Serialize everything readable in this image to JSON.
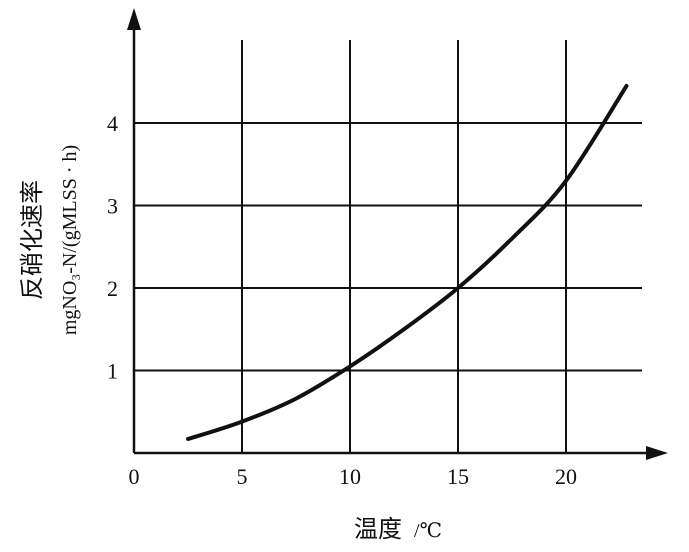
{
  "chart_data": {
    "type": "line",
    "x_axis": {
      "label_text": "温度",
      "label_unit": "/℃",
      "range": [
        0,
        25
      ],
      "ticks": [
        0,
        5,
        10,
        15,
        20
      ],
      "tick_labels": [
        "0",
        "5",
        "10",
        "15",
        "20"
      ]
    },
    "y_axis": {
      "label_line1": "反硝化速率",
      "label_line2": "mgNO₃-N/(gMLSS · h)",
      "range": [
        0,
        5
      ],
      "ticks": [
        1,
        2,
        3,
        4
      ],
      "tick_labels": [
        "1",
        "2",
        "3",
        "4"
      ]
    },
    "grid": "on",
    "series": [
      {
        "values_x": [
          2.5,
          5,
          7.5,
          10,
          12.5,
          15,
          17.5,
          20,
          22.8
        ],
        "values_y": [
          0.17,
          0.38,
          0.66,
          1.05,
          1.5,
          2.0,
          2.6,
          3.3,
          4.45
        ]
      }
    ]
  }
}
